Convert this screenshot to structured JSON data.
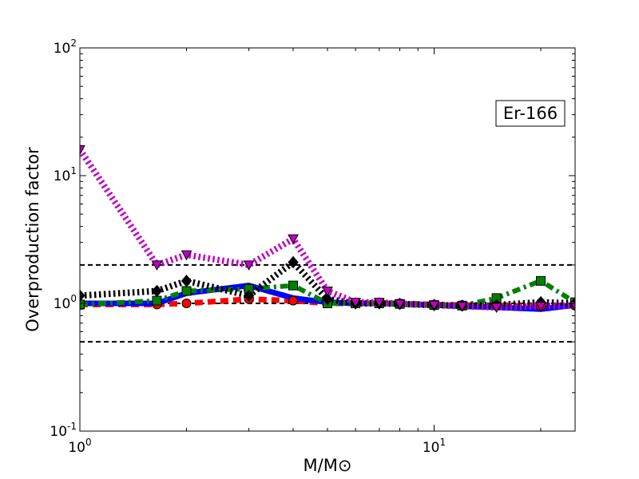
{
  "chart_data": {
    "type": "line",
    "xscale": "log",
    "yscale": "log",
    "xlim": [
      1,
      25
    ],
    "ylim": [
      0.1,
      100
    ],
    "xlabel": "M/M⊙",
    "ylabel": "Overproduction factor",
    "x_ticks": [
      {
        "value": 1,
        "base": "10",
        "exp": "0"
      },
      {
        "value": 10,
        "base": "10",
        "exp": "1"
      }
    ],
    "y_ticks": [
      {
        "value": 0.1,
        "base": "10",
        "exp": "-1"
      },
      {
        "value": 1,
        "base": "10",
        "exp": "0"
      },
      {
        "value": 10,
        "base": "10",
        "exp": "1"
      },
      {
        "value": 100,
        "base": "10",
        "exp": "2"
      }
    ],
    "annotation": "Er-166",
    "annotation_position": "top-right",
    "reference_lines": [
      0.5,
      1,
      2
    ],
    "series": [
      {
        "color": "#ff0000",
        "style": "dashed",
        "marker": "circle",
        "x": [
          1,
          1.65,
          2,
          3,
          4,
          5,
          6,
          7,
          8,
          10,
          12,
          15,
          20,
          25
        ],
        "y": [
          0.98,
          0.98,
          1.0,
          1.08,
          1.05,
          1.0,
          1.0,
          1.0,
          1.0,
          0.98,
          0.97,
          0.96,
          0.95,
          0.96
        ]
      },
      {
        "color": "#0000ff",
        "style": "solid",
        "marker": "none",
        "x": [
          1,
          1.65,
          2,
          3,
          4,
          5,
          6,
          7,
          8,
          10,
          12,
          15,
          20,
          25
        ],
        "y": [
          1.0,
          1.0,
          1.2,
          1.38,
          1.1,
          1.02,
          1.0,
          1.0,
          0.99,
          0.97,
          0.95,
          0.93,
          0.9,
          0.97
        ]
      },
      {
        "color": "#007f00",
        "style": "dashdot",
        "marker": "square",
        "x": [
          1,
          1.65,
          2,
          3,
          4,
          5,
          6,
          7,
          8,
          10,
          12,
          15,
          20,
          25
        ],
        "y": [
          0.98,
          1.05,
          1.25,
          1.3,
          1.38,
          1.0,
          1.0,
          1.0,
          0.99,
          0.97,
          0.96,
          1.1,
          1.5,
          1.02
        ]
      },
      {
        "color": "#000000",
        "style": "dotted",
        "marker": "diamond",
        "x": [
          1,
          1.65,
          2,
          3,
          4,
          5,
          6,
          7,
          8,
          10,
          12,
          15,
          20,
          25
        ],
        "y": [
          1.15,
          1.25,
          1.5,
          1.15,
          2.1,
          1.08,
          1.0,
          1.0,
          0.99,
          0.97,
          0.96,
          0.97,
          1.02,
          1.0
        ]
      },
      {
        "color": "#bf00bf",
        "style": "dotted",
        "marker": "triangle-down",
        "x": [
          1,
          1.65,
          2,
          3,
          4,
          5,
          6,
          7,
          8,
          10,
          12,
          15,
          20,
          25
        ],
        "y": [
          16,
          2.0,
          2.4,
          2.0,
          3.2,
          1.25,
          1.02,
          1.02,
          0.99,
          0.97,
          0.95,
          0.93,
          0.95,
          0.96
        ]
      }
    ]
  }
}
